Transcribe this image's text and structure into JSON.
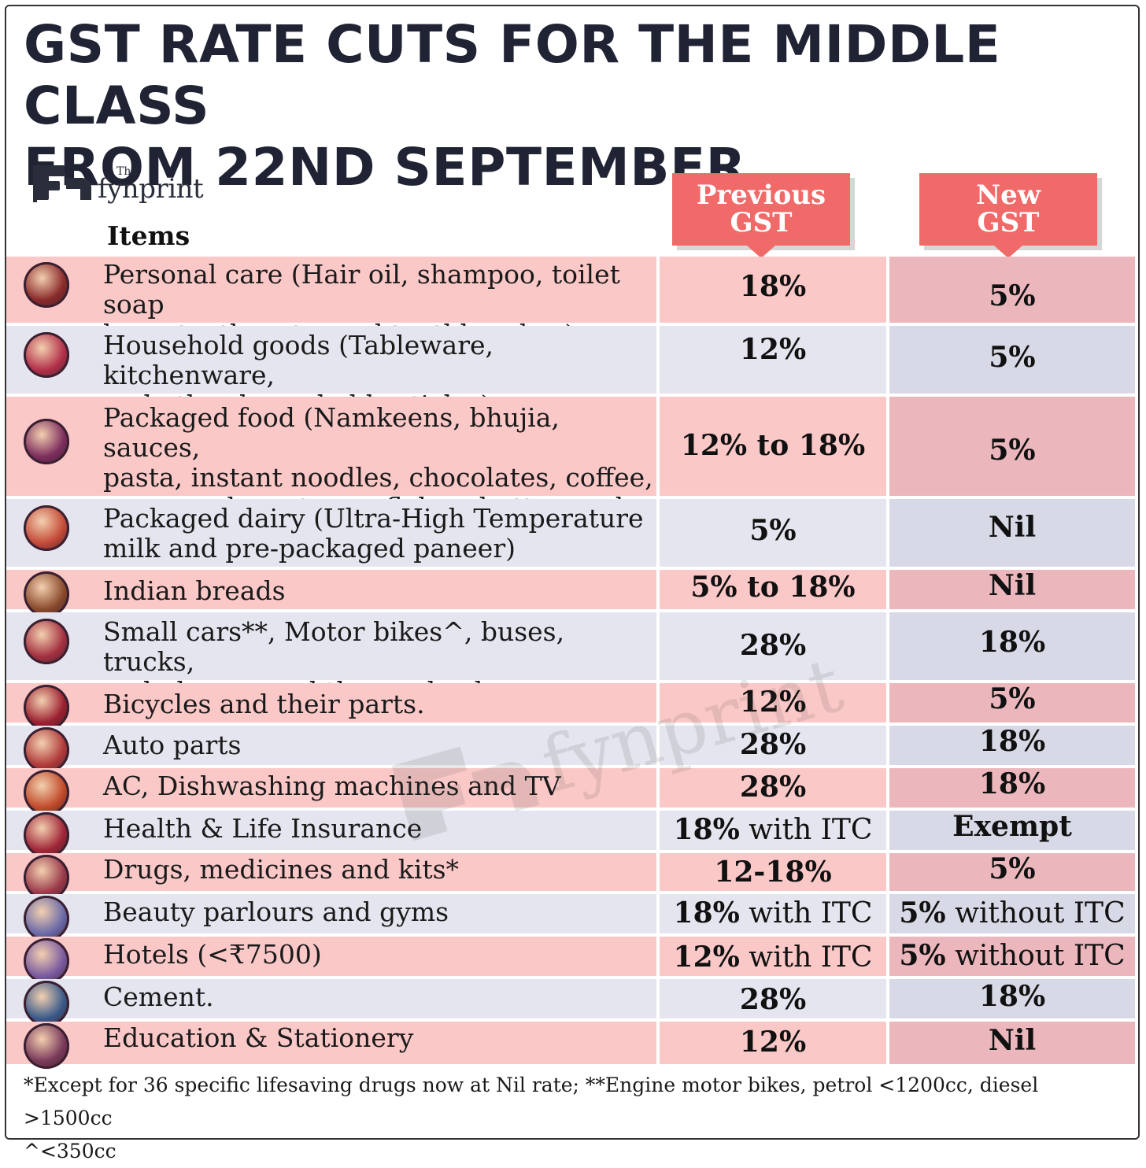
{
  "header": {
    "title_line1": "GST RATE CUTS FOR THE MIDDLE CLASS",
    "title_line2": "FROM 22ND SEPTEMBER"
  },
  "brand": {
    "small": "The",
    "word": "fynprint"
  },
  "columns": {
    "items": "Items",
    "previous_l1": "Previous",
    "previous_l2": "GST",
    "new_l1": "New",
    "new_l2": "GST"
  },
  "colors": {
    "badge": "#f06a6a",
    "pink_row": "#fbc8c8",
    "blue_row": "#e4e5ef",
    "title": "#1f2333"
  },
  "rows": [
    {
      "icon": "bottle-icon",
      "item_l1": "Personal care (Hair oil, shampoo, toilet soap",
      "item_l2": "bars, toothpaste, and toothbrushes)",
      "item_l3": "",
      "prev": "18%",
      "prev_suffix": "",
      "new": "5%",
      "new_suffix": ""
    },
    {
      "icon": "kitchenware-icon",
      "item_l1": "Household goods (Tableware, kitchenware,",
      "item_l2": "and other household articles)",
      "item_l3": "",
      "prev": "12%",
      "prev_suffix": "",
      "new": "5%",
      "new_suffix": ""
    },
    {
      "icon": "food-box-icon",
      "item_l1": "Packaged food (Namkeens, bhujia, sauces,",
      "item_l2": "pasta, instant noodles, chocolates, coffee,",
      "item_l3": "preserved meat, cornflakes, butter, and ghee)",
      "prev": "12% to 18%",
      "prev_suffix": "",
      "new": "5%",
      "new_suffix": ""
    },
    {
      "icon": "dairy-tray-icon",
      "item_l1": "Packaged dairy (Ultra-High Temperature",
      "item_l2": "milk and pre-packaged paneer)",
      "item_l3": "",
      "prev": "5%",
      "prev_suffix": "",
      "new": "Nil",
      "new_suffix": ""
    },
    {
      "icon": "bread-icon",
      "item_l1": "Indian breads",
      "item_l2": "",
      "item_l3": "",
      "prev": "5% to 18%",
      "prev_suffix": "",
      "new": "Nil",
      "new_suffix": ""
    },
    {
      "icon": "vehicles-icon",
      "item_l1": "Small cars**, Motor bikes^, buses, trucks,",
      "item_l2": "ambulances and three-wheelers.",
      "item_l3": "",
      "prev": "28%",
      "prev_suffix": "",
      "new": "18%",
      "new_suffix": ""
    },
    {
      "icon": "bicycle-icon",
      "item_l1": "Bicycles and their parts.",
      "item_l2": "",
      "item_l3": "",
      "prev": "12%",
      "prev_suffix": "",
      "new": "5%",
      "new_suffix": ""
    },
    {
      "icon": "gear-icon",
      "item_l1": "Auto parts",
      "item_l2": "",
      "item_l3": "",
      "prev": "28%",
      "prev_suffix": "",
      "new": "18%",
      "new_suffix": ""
    },
    {
      "icon": "washing-machine-icon",
      "item_l1": "AC, Dishwashing machines and TV",
      "item_l2": "",
      "item_l3": "",
      "prev": "28%",
      "prev_suffix": "",
      "new": "18%",
      "new_suffix": ""
    },
    {
      "icon": "shield-heart-icon",
      "item_l1": "Health & Life Insurance",
      "item_l2": "",
      "item_l3": "",
      "prev": "18%",
      "prev_suffix": " with ITC",
      "new": "Exempt",
      "new_suffix": ""
    },
    {
      "icon": "medicine-icon",
      "item_l1": "Drugs, medicines and kits*",
      "item_l2": "",
      "item_l3": "",
      "prev": "12-18%",
      "prev_suffix": "",
      "new": "5%",
      "new_suffix": ""
    },
    {
      "icon": "cosmetics-icon",
      "item_l1": "Beauty parlours and gyms",
      "item_l2": "",
      "item_l3": "",
      "prev": "18%",
      "prev_suffix": " with ITC",
      "new": "5%",
      "new_suffix": " without ITC"
    },
    {
      "icon": "hotel-icon",
      "item_l1": "Hotels (<₹7500)",
      "item_l2": "",
      "item_l3": "",
      "prev": "12%",
      "prev_suffix": " with ITC",
      "new": "5%",
      "new_suffix": " without ITC"
    },
    {
      "icon": "cement-mixer-icon",
      "item_l1": "Cement.",
      "item_l2": "",
      "item_l3": "",
      "prev": "28%",
      "prev_suffix": "",
      "new": "18%",
      "new_suffix": ""
    },
    {
      "icon": "graduate-icon",
      "item_l1": "Education & Stationery",
      "item_l2": "",
      "item_l3": "",
      "prev": "12%",
      "prev_suffix": "",
      "new": "Nil",
      "new_suffix": ""
    }
  ],
  "footnote": {
    "line1": "*Except for 36 specific lifesaving drugs now at Nil rate; **Engine motor bikes, petrol <1200cc, diesel >1500cc",
    "line2": "^<350cc"
  }
}
